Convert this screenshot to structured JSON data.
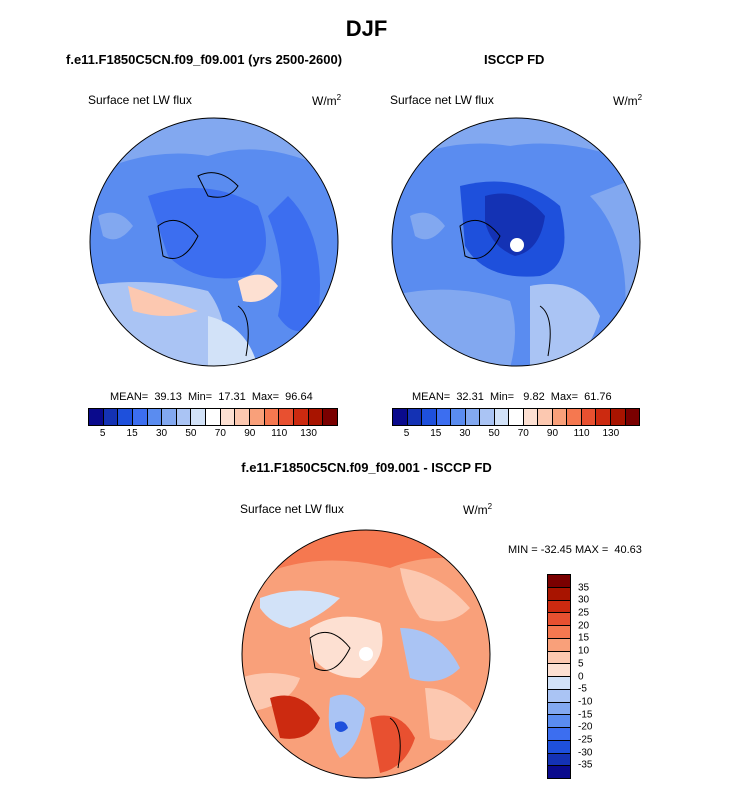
{
  "page": {
    "title": "DJF"
  },
  "panels": [
    {
      "title": "f.e11.F1850C5CN.f09_f09.001 (yrs 2500-2600)",
      "variable": "Surface net LW flux",
      "units": "W/m",
      "units_sup": "2",
      "stats": "MEAN=  39.13  Min=  17.31  Max=  96.64"
    },
    {
      "title": "ISCCP FD",
      "variable": "Surface net LW flux",
      "units": "W/m",
      "units_sup": "2",
      "stats": "MEAN=  32.31  Min=   9.82  Max=  61.76"
    },
    {
      "title": "f.e11.F1850C5CN.f09_f09.001 - ISCCP FD",
      "variable": "Surface net LW flux",
      "units": "W/m",
      "units_sup": "2",
      "stats": "MIN = -32.45 MAX =  40.63"
    }
  ],
  "colorbar_top": {
    "colors": [
      "#0a0a8c",
      "#1432b4",
      "#1e50dc",
      "#3c6ef0",
      "#5a8cf0",
      "#82a8f0",
      "#aac4f4",
      "#d2e2f8",
      "#ffffff",
      "#fde0d2",
      "#fcc8b0",
      "#f9a07a",
      "#f57850",
      "#e85030",
      "#cc2a10",
      "#a81400",
      "#7a0000"
    ],
    "labels": [
      "5",
      "15",
      "30",
      "50",
      "70",
      "90",
      "110",
      "130"
    ]
  },
  "colorbar_diff": {
    "colors": [
      "#7a0000",
      "#a81400",
      "#cc2a10",
      "#e85030",
      "#f57850",
      "#f9a07a",
      "#fcc8b0",
      "#fde0d2",
      "#d2e2f8",
      "#aac4f4",
      "#82a8f0",
      "#5a8cf0",
      "#3c6ef0",
      "#1e50dc",
      "#1432b4",
      "#0a0a8c"
    ],
    "labels": [
      "35",
      "30",
      "25",
      "20",
      "15",
      "10",
      "5",
      "0",
      "-5",
      "-10",
      "-15",
      "-20",
      "-25",
      "-30",
      "-35"
    ]
  }
}
